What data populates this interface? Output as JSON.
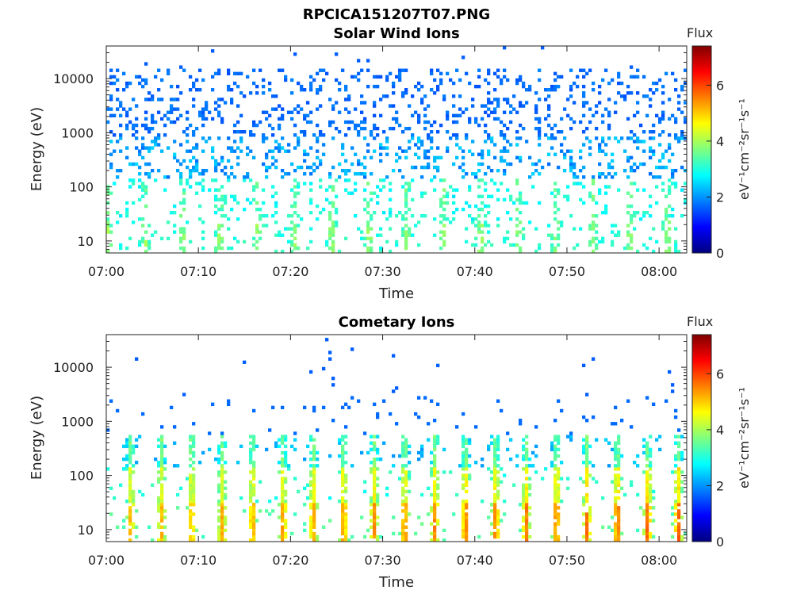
{
  "figure_title": "RPCICA151207T07.PNG",
  "colormap": [
    "#00007f",
    "#0000ff",
    "#007fff",
    "#00ffff",
    "#7fff7f",
    "#ffff00",
    "#ff7f00",
    "#ff0000",
    "#7f0000"
  ],
  "chart_data": [
    {
      "type": "heatmap",
      "title": "Solar Wind Ions",
      "xlabel": "Time",
      "ylabel": "Energy (eV)",
      "x_tick_labels": [
        "07:00",
        "07:10",
        "07:20",
        "07:30",
        "07:40",
        "07:50",
        "08:00"
      ],
      "x_range": [
        "07:00",
        "08:03"
      ],
      "y_scale": "log",
      "y_tick_labels": [
        "10",
        "100",
        "1000",
        "10000"
      ],
      "y_range": [
        6,
        40000
      ],
      "colorbar": {
        "title": "Flux",
        "label": "eV⁻¹cm⁻²sr⁻¹s⁻¹",
        "range": [
          0,
          7.4
        ],
        "tick_labels": [
          "0",
          "2",
          "4",
          "6"
        ]
      },
      "pattern": "sparse background counts, blue (~1.5) above 1000 eV, cyan-green (~2.5-3.5) near 10-300 eV, periodic enhancements every ~4 min"
    },
    {
      "type": "heatmap",
      "title": "Cometary Ions",
      "xlabel": "Time",
      "ylabel": "Energy (eV)",
      "x_tick_labels": [
        "07:00",
        "07:10",
        "07:20",
        "07:30",
        "07:40",
        "07:50",
        "08:00"
      ],
      "x_range": [
        "07:00",
        "08:03"
      ],
      "y_scale": "log",
      "y_tick_labels": [
        "10",
        "100",
        "1000",
        "10000"
      ],
      "y_range": [
        6,
        40000
      ],
      "colorbar": {
        "title": "Flux",
        "label": "eV⁻¹cm⁻²sr⁻¹s⁻¹",
        "range": [
          0,
          7.4
        ],
        "tick_labels": [
          "0",
          "2",
          "4",
          "6"
        ]
      },
      "pattern": "periodic bursts roughly every 3.3 min below ~600 eV, peak flux ~5.5-6 near 10-20 eV, sparse counts up to ~10000 eV"
    }
  ]
}
